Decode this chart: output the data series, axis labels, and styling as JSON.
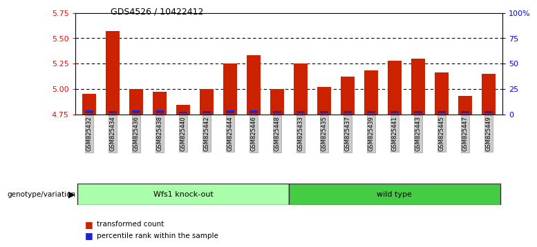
{
  "title": "GDS4526 / 10422412",
  "samples": [
    "GSM825432",
    "GSM825434",
    "GSM825436",
    "GSM825438",
    "GSM825440",
    "GSM825442",
    "GSM825444",
    "GSM825446",
    "GSM825448",
    "GSM825433",
    "GSM825435",
    "GSM825437",
    "GSM825439",
    "GSM825441",
    "GSM825443",
    "GSM825445",
    "GSM825447",
    "GSM825449"
  ],
  "red_values": [
    4.95,
    5.57,
    5.0,
    4.97,
    4.84,
    5.0,
    5.25,
    5.33,
    5.0,
    5.25,
    5.02,
    5.12,
    5.18,
    5.28,
    5.3,
    5.16,
    4.93,
    5.15
  ],
  "blue_heights": [
    0.028,
    0.026,
    0.027,
    0.027,
    0.016,
    0.026,
    0.03,
    0.03,
    0.026,
    0.026,
    0.026,
    0.026,
    0.026,
    0.026,
    0.026,
    0.026,
    0.026,
    0.026
  ],
  "y_min": 4.75,
  "y_max": 5.75,
  "y_ticks": [
    4.75,
    5.0,
    5.25,
    5.5,
    5.75
  ],
  "y2_ticks": [
    0,
    25,
    50,
    75,
    100
  ],
  "y2_labels": [
    "0",
    "25",
    "50",
    "75",
    "100%"
  ],
  "group1_label": "Wfs1 knock-out",
  "group2_label": "wild type",
  "group1_count": 9,
  "genotype_label": "genotype/variation",
  "legend_red": "transformed count",
  "legend_blue": "percentile rank within the sample",
  "bar_color_red": "#cc2200",
  "bar_color_blue": "#2222cc",
  "group1_color": "#aaffaa",
  "group2_color": "#44cc44",
  "xtick_bg": "#cccccc",
  "grid_lines": [
    5.0,
    5.25,
    5.5
  ]
}
